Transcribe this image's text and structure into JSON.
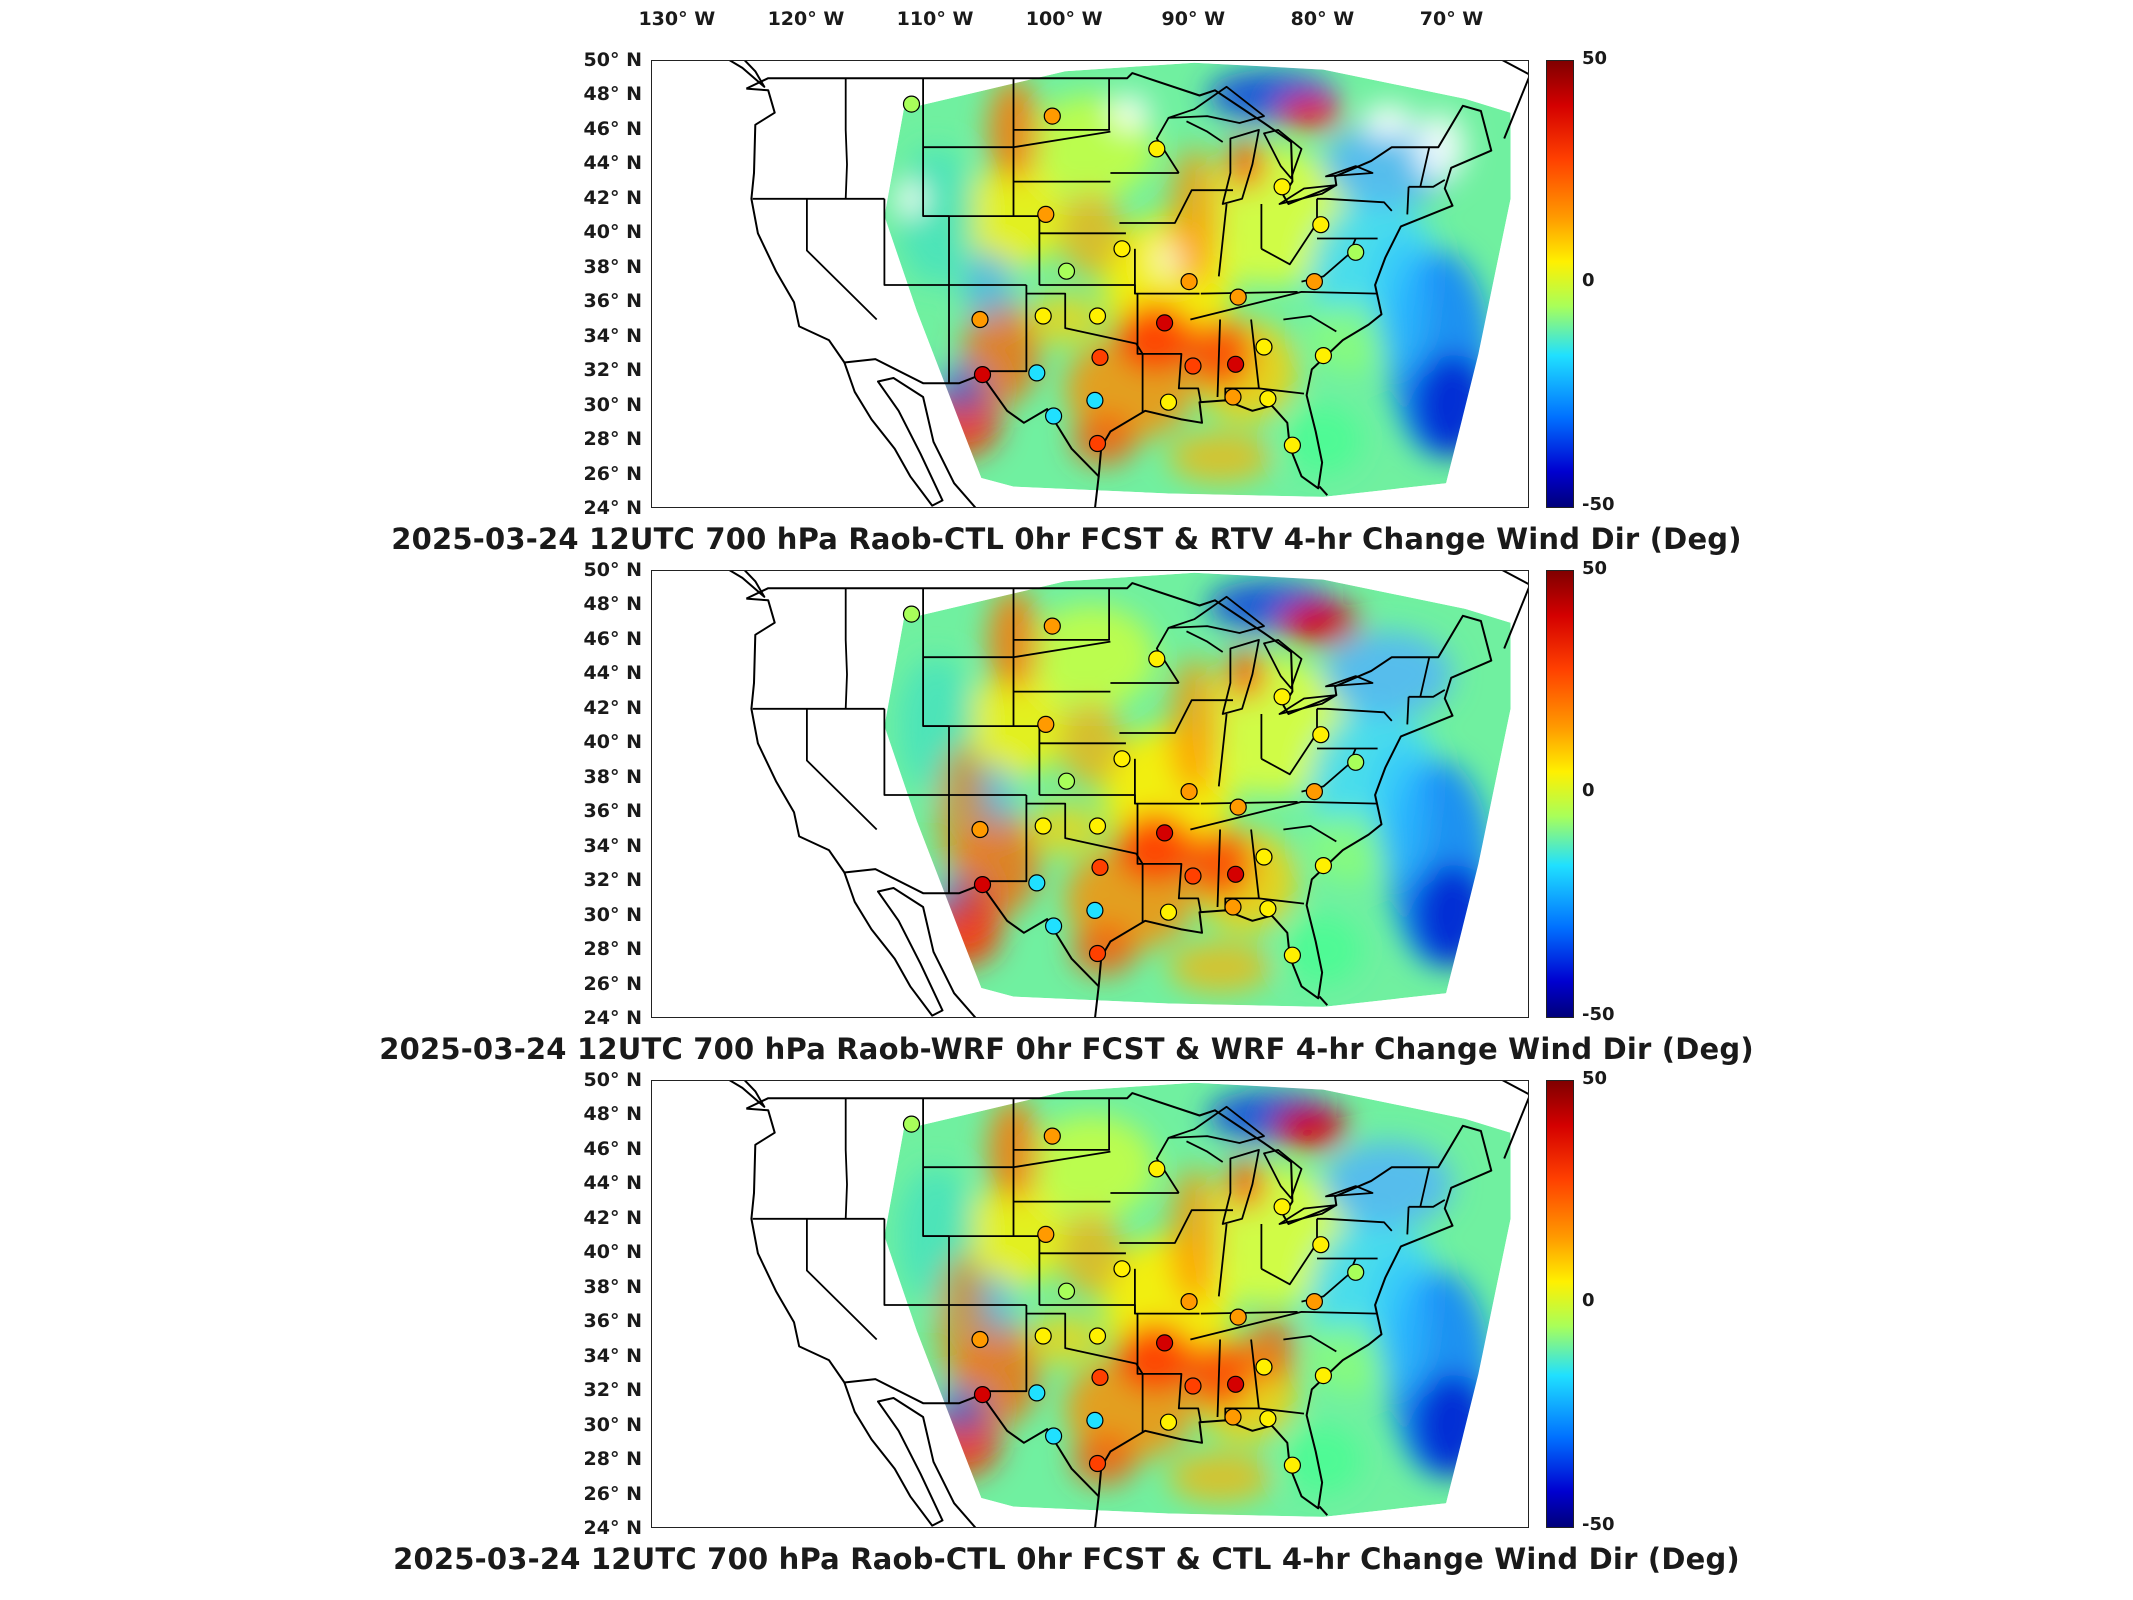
{
  "longitude_labels": [
    "130° W",
    "120° W",
    "110° W",
    "100° W",
    "90° W",
    "80° W",
    "70° W"
  ],
  "latitude_labels": [
    "50° N",
    "48° N",
    "46° N",
    "44° N",
    "42° N",
    "40° N",
    "38° N",
    "36° N",
    "34° N",
    "32° N",
    "30° N",
    "28° N",
    "26° N",
    "24° N"
  ],
  "colorbar": {
    "max_label": "50",
    "mid_label": "0",
    "min_label": "-50",
    "colors": [
      "#800000",
      "#d40000",
      "#ff4000",
      "#ff9a00",
      "#fff000",
      "#a8ff5a",
      "#20e0ff",
      "#0070ff",
      "#0000d0",
      "#00007a"
    ]
  },
  "panels": [
    {
      "title": "2025-03-24 12UTC 700 hPa Raob-CTL 0hr FCST & RTV 4-hr Change Wind Dir (Deg)"
    },
    {
      "title": "2025-03-24 12UTC 700 hPa Raob-WRF 0hr FCST & WRF 4-hr Change Wind Dir (Deg)"
    },
    {
      "title": "2025-03-24 12UTC 700 hPa Raob-CTL 0hr FCST & CTL 4-hr Change Wind Dir (Deg)"
    }
  ],
  "stations": [
    {
      "lon": -111.9,
      "lat": 47.5,
      "value": -10
    },
    {
      "lon": -101.0,
      "lat": 46.8,
      "value": 12
    },
    {
      "lon": -92.9,
      "lat": 44.9,
      "value": 5
    },
    {
      "lon": -101.5,
      "lat": 41.1,
      "value": 15
    },
    {
      "lon": -83.2,
      "lat": 42.7,
      "value": 3
    },
    {
      "lon": -80.2,
      "lat": 40.5,
      "value": 6
    },
    {
      "lon": -99.9,
      "lat": 37.8,
      "value": -4
    },
    {
      "lon": -95.6,
      "lat": 39.1,
      "value": 8
    },
    {
      "lon": -90.4,
      "lat": 37.2,
      "value": 20
    },
    {
      "lon": -86.6,
      "lat": 36.3,
      "value": 22
    },
    {
      "lon": -80.7,
      "lat": 37.2,
      "value": 12
    },
    {
      "lon": -77.5,
      "lat": 38.9,
      "value": -6
    },
    {
      "lon": -106.6,
      "lat": 35.0,
      "value": 12
    },
    {
      "lon": -101.7,
      "lat": 35.2,
      "value": 10
    },
    {
      "lon": -97.5,
      "lat": 35.2,
      "value": 4
    },
    {
      "lon": -92.3,
      "lat": 34.8,
      "value": 40
    },
    {
      "lon": -84.6,
      "lat": 33.4,
      "value": 8
    },
    {
      "lon": -80.0,
      "lat": 32.9,
      "value": 3
    },
    {
      "lon": -97.3,
      "lat": 32.8,
      "value": 28
    },
    {
      "lon": -102.2,
      "lat": 31.9,
      "value": -12
    },
    {
      "lon": -90.1,
      "lat": 32.3,
      "value": 25
    },
    {
      "lon": -86.8,
      "lat": 32.4,
      "value": 38
    },
    {
      "lon": -106.4,
      "lat": 31.8,
      "value": 35
    },
    {
      "lon": -97.7,
      "lat": 30.3,
      "value": -20
    },
    {
      "lon": -92.0,
      "lat": 30.2,
      "value": 10
    },
    {
      "lon": -84.3,
      "lat": 30.4,
      "value": 6
    },
    {
      "lon": -97.5,
      "lat": 27.8,
      "value": 30
    },
    {
      "lon": -82.4,
      "lat": 27.7,
      "value": 8
    },
    {
      "lon": -100.9,
      "lat": 29.4,
      "value": -15
    },
    {
      "lon": -87.0,
      "lat": 30.5,
      "value": 18
    }
  ]
}
